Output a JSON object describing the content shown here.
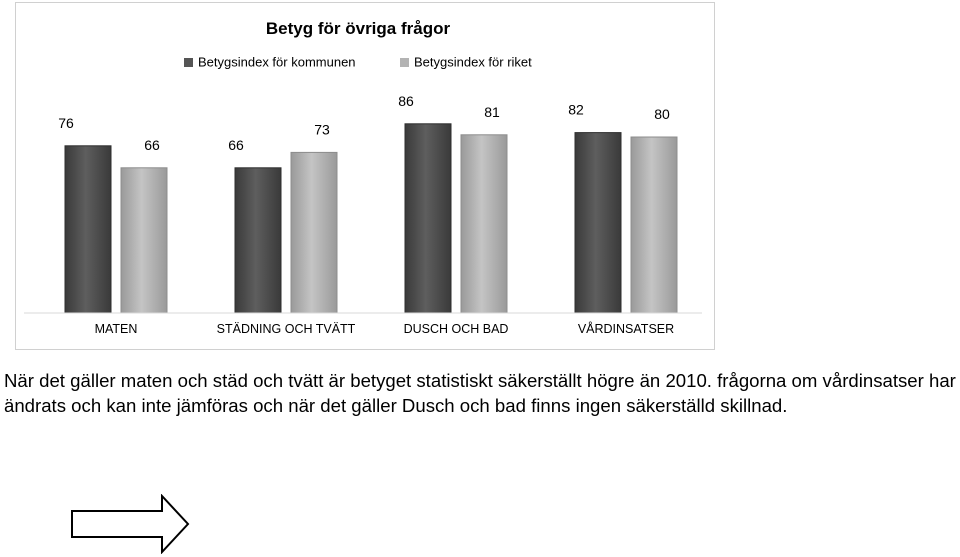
{
  "chart_data": {
    "type": "bar",
    "title": "Betyg för övriga frågor",
    "categories": [
      "MATEN",
      "STÄDNING OCH TVÄTT",
      "DUSCH OCH BAD",
      "VÅRDINSATSER"
    ],
    "series": [
      {
        "name": "Betygsindex för kommunen",
        "values": [
          76,
          66,
          86,
          82
        ],
        "color": "#555555"
      },
      {
        "name": "Betygsindex för riket",
        "values": [
          66,
          73,
          81,
          80
        ],
        "color": "#b3b3b3"
      }
    ],
    "data_labels": true,
    "grid": false,
    "legend": "top-center",
    "xlabel": "",
    "ylabel": ""
  },
  "caption": "När det gäller maten och städ och tvätt är betyget statistiskt säkerställt högre än 2010. frågorna om vårdinsatser har ändrats och kan inte jämföras och när det gäller Dusch och bad finns ingen säkerställd skillnad.",
  "arrow_icon": "right-arrow-icon"
}
